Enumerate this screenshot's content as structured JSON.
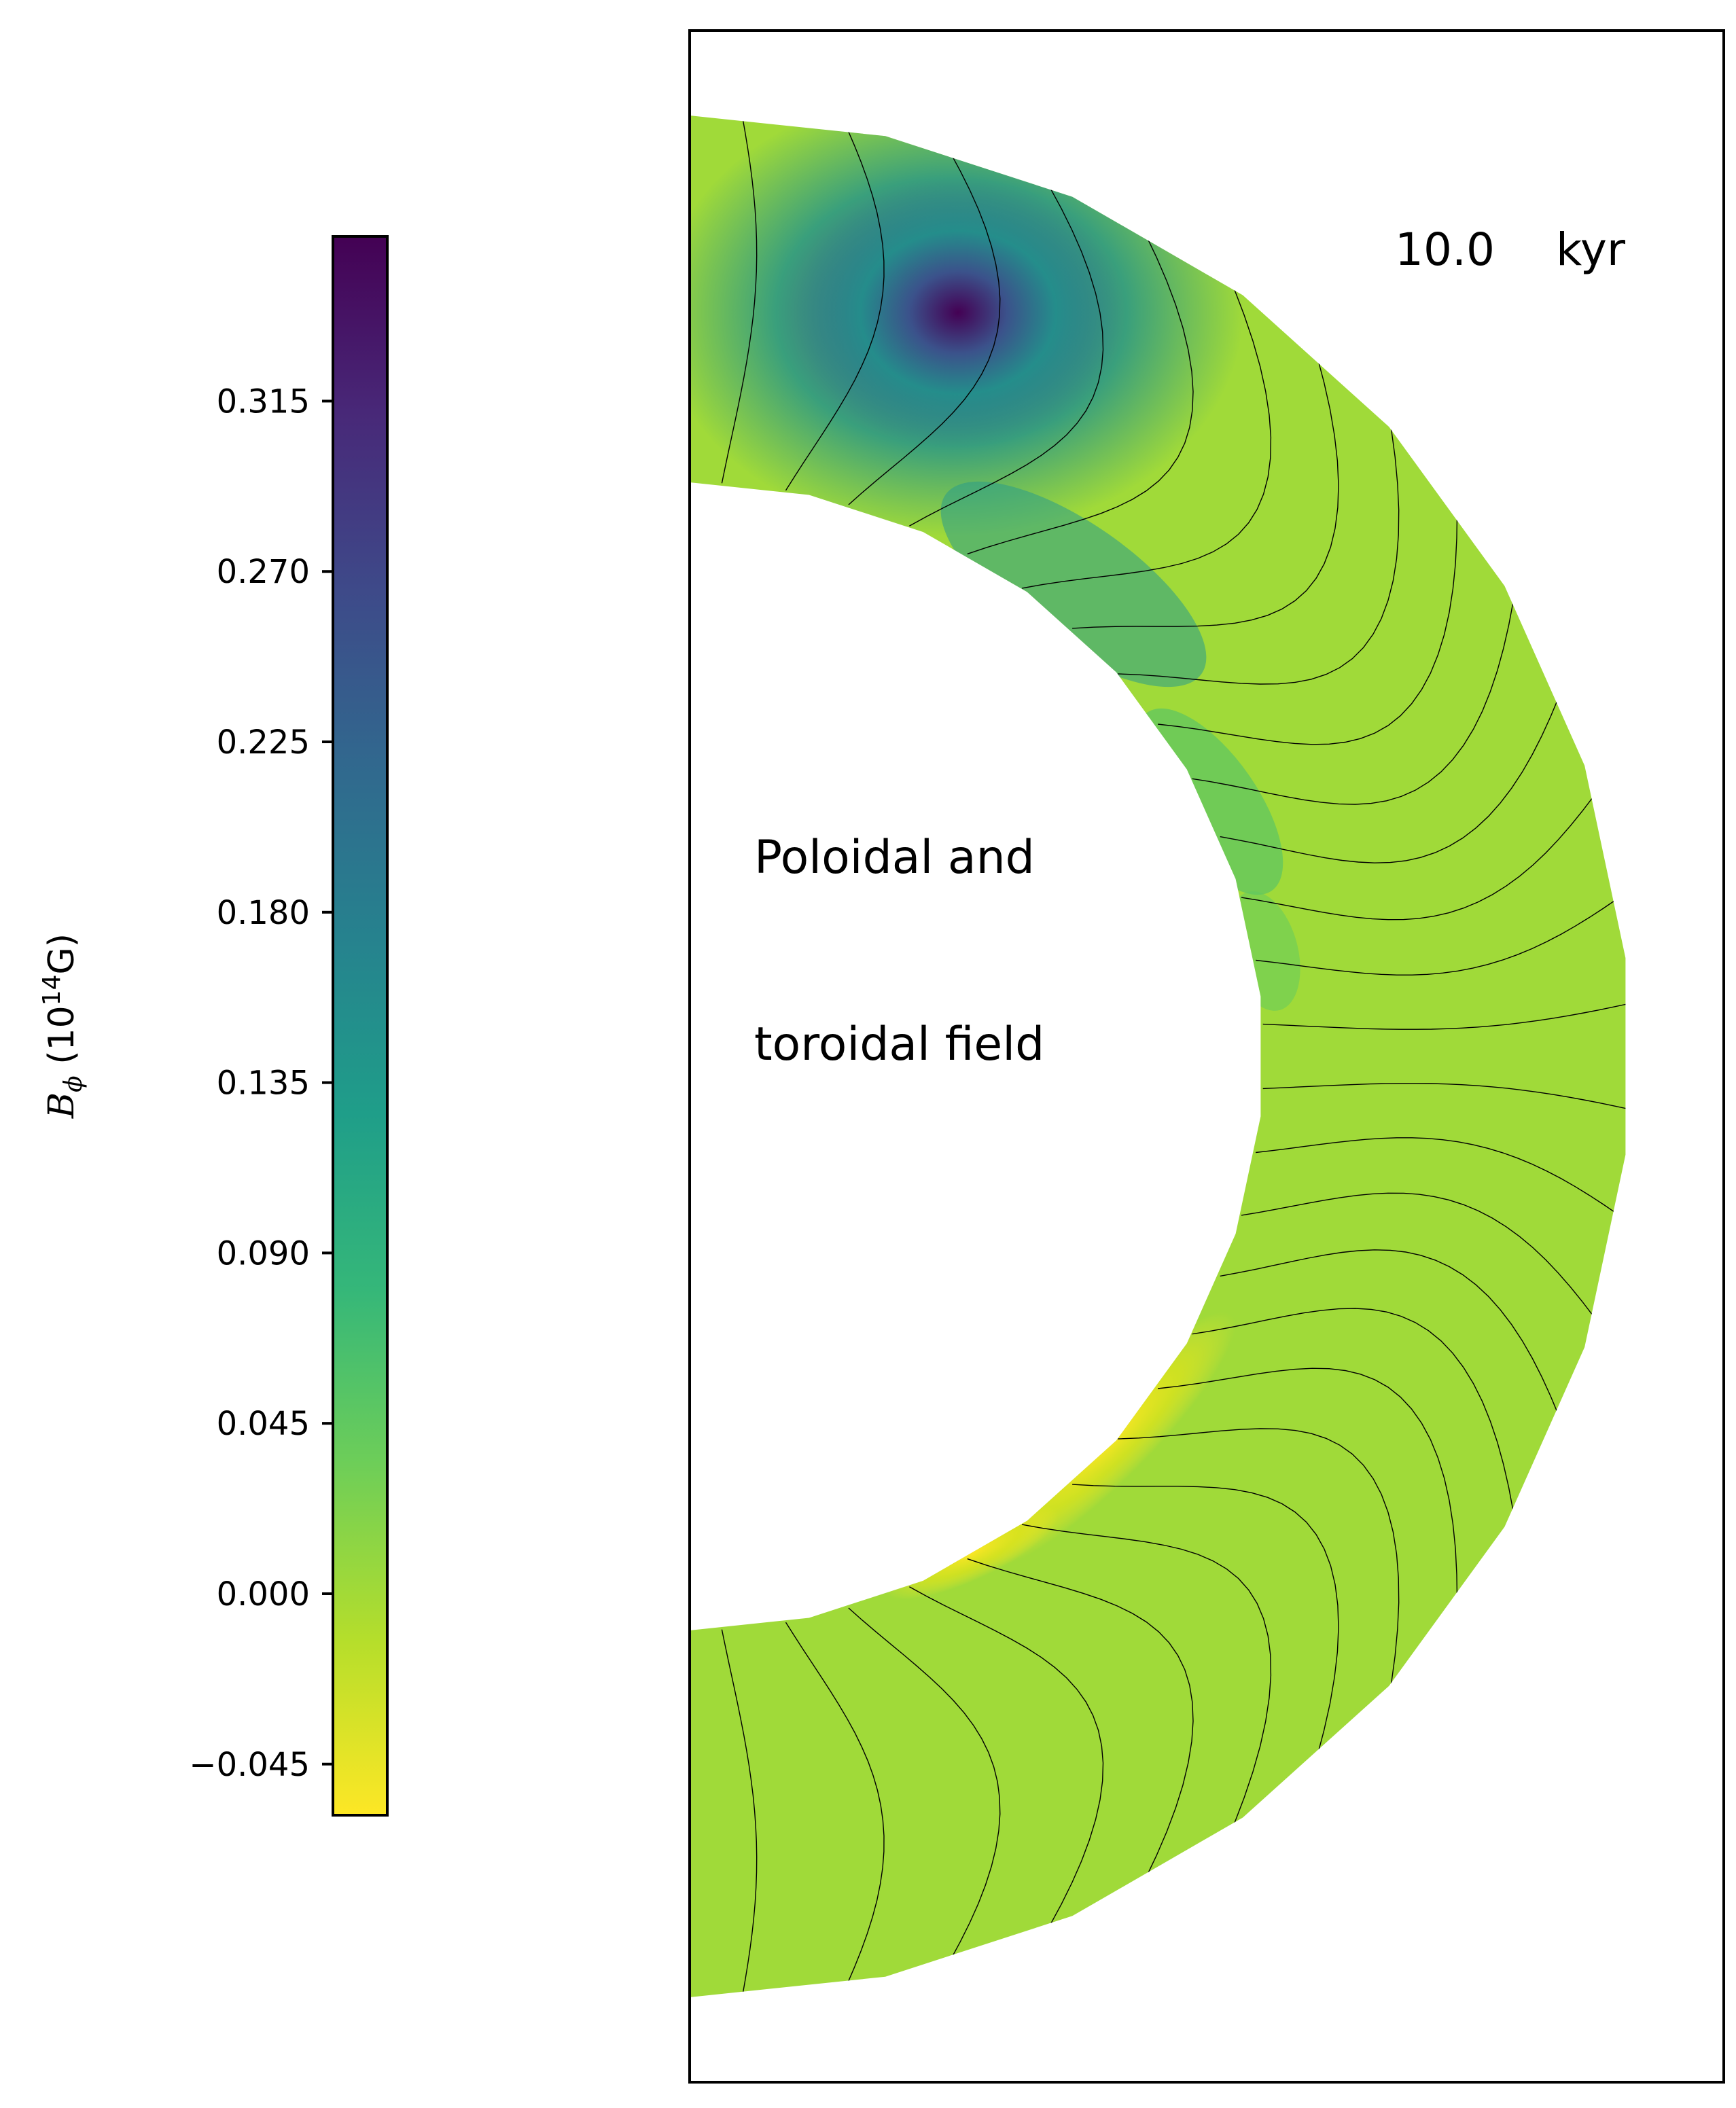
{
  "chart_data": {
    "type": "heatmap",
    "title": "",
    "time_label": {
      "value": "10.0",
      "unit": "kyr"
    },
    "annotation": [
      "Poloidal and",
      "toroidal field"
    ],
    "colorbar": {
      "label": "B",
      "label_sub": "ϕ",
      "label_unit_pre": " (10",
      "label_unit_sup": "14",
      "label_unit_post": "G)",
      "colormap": "viridis_r",
      "vmin": -0.0585,
      "vmax": 0.3585,
      "ticks": [
        -0.045,
        0.0,
        0.045,
        0.09,
        0.135,
        0.18,
        0.225,
        0.27,
        0.315
      ],
      "tick_labels": [
        "−0.045",
        "0.000",
        "0.045",
        "0.090",
        "0.135",
        "0.180",
        "0.225",
        "0.270",
        "0.315"
      ]
    },
    "domain": {
      "geometry": "half-annulus (meridional cross-section of neutron star crust)",
      "inner_radius_fraction": 0.6,
      "theta_range_deg": [
        0,
        180
      ]
    },
    "field_features": {
      "toroidal_maximum": {
        "value": 0.35,
        "theta_deg": 25,
        "r_fraction": 0.62
      },
      "toroidal_minimum": {
        "value": -0.05,
        "theta_deg": 125,
        "r_fraction": 0.02
      },
      "background_value": 0.01
    },
    "poloidal_field_lines": {
      "count": 28,
      "color": "#000000"
    }
  }
}
